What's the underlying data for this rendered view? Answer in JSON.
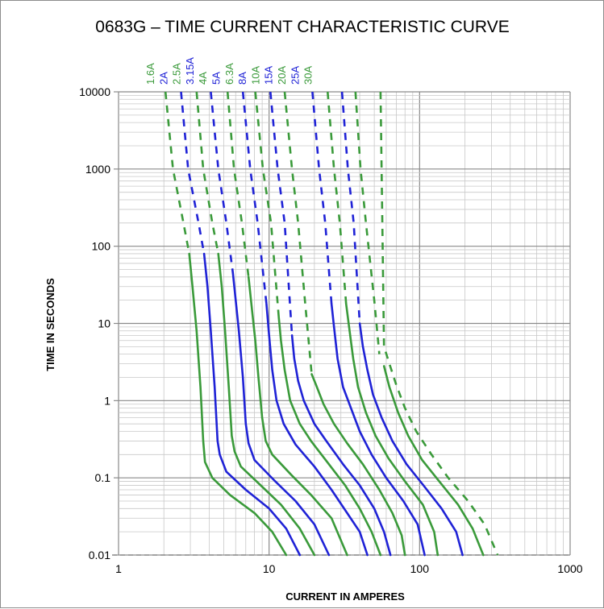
{
  "chart_data": {
    "type": "line",
    "title": "0683G – TIME CURRENT CHARACTERISTIC CURVE",
    "xlabel": "CURRENT IN AMPERES",
    "ylabel": "TIME IN SECONDS",
    "x_scale": "log",
    "y_scale": "log",
    "xlim": [
      1,
      1000
    ],
    "ylim": [
      0.01,
      10000
    ],
    "x_ticks": [
      "1",
      "10",
      "100",
      "1000"
    ],
    "y_ticks": [
      "0.01",
      "0.1",
      "1",
      "10",
      "100",
      "1000",
      "10000"
    ],
    "grid": true,
    "legend_position": "top",
    "colors": {
      "green": "#3a9a3a",
      "blue": "#1f22d6"
    },
    "series": [
      {
        "name": "1.6A",
        "color": "#3a9a3a",
        "dashed_until_time": 80,
        "points": [
          [
            2.05,
            10000
          ],
          [
            2.3,
            1000
          ],
          [
            2.7,
            200
          ],
          [
            2.95,
            80
          ],
          [
            3.1,
            30
          ],
          [
            3.3,
            8
          ],
          [
            3.5,
            1.5
          ],
          [
            3.65,
            0.3
          ],
          [
            3.75,
            0.16
          ],
          [
            4.2,
            0.1
          ],
          [
            5.5,
            0.06
          ],
          [
            8,
            0.035
          ],
          [
            10.5,
            0.02
          ],
          [
            13,
            0.01
          ]
        ]
      },
      {
        "name": "2A",
        "color": "#1f22d6",
        "dashed_until_time": 80,
        "points": [
          [
            2.6,
            10000
          ],
          [
            2.9,
            1000
          ],
          [
            3.4,
            200
          ],
          [
            3.7,
            80
          ],
          [
            3.9,
            30
          ],
          [
            4.1,
            8
          ],
          [
            4.35,
            1.5
          ],
          [
            4.55,
            0.3
          ],
          [
            4.7,
            0.2
          ],
          [
            5.2,
            0.12
          ],
          [
            7,
            0.07
          ],
          [
            10,
            0.04
          ],
          [
            13,
            0.022
          ],
          [
            16,
            0.01
          ]
        ]
      },
      {
        "name": "2.5A",
        "color": "#3a9a3a",
        "dashed_until_time": 80,
        "points": [
          [
            3.3,
            10000
          ],
          [
            3.65,
            1000
          ],
          [
            4.2,
            200
          ],
          [
            4.6,
            80
          ],
          [
            4.85,
            30
          ],
          [
            5.1,
            8
          ],
          [
            5.4,
            1.5
          ],
          [
            5.65,
            0.35
          ],
          [
            5.9,
            0.22
          ],
          [
            6.5,
            0.14
          ],
          [
            8.8,
            0.08
          ],
          [
            12,
            0.045
          ],
          [
            16,
            0.022
          ],
          [
            20,
            0.01
          ]
        ]
      },
      {
        "name": "3.15A",
        "color": "#1f22d6",
        "dashed_until_time": 45,
        "points": [
          [
            4.1,
            10000
          ],
          [
            4.6,
            1000
          ],
          [
            5.2,
            200
          ],
          [
            5.75,
            45
          ],
          [
            6,
            20
          ],
          [
            6.3,
            8
          ],
          [
            6.7,
            2
          ],
          [
            7,
            0.5
          ],
          [
            7.3,
            0.28
          ],
          [
            8,
            0.17
          ],
          [
            11,
            0.09
          ],
          [
            15,
            0.05
          ],
          [
            20,
            0.025
          ],
          [
            25,
            0.01
          ]
        ]
      },
      {
        "name": "4A",
        "color": "#3a9a3a",
        "dashed_until_time": 40,
        "points": [
          [
            5.3,
            10000
          ],
          [
            5.85,
            1000
          ],
          [
            6.6,
            200
          ],
          [
            7.3,
            40
          ],
          [
            7.7,
            15
          ],
          [
            8.1,
            6
          ],
          [
            8.5,
            2
          ],
          [
            9,
            0.6
          ],
          [
            9.5,
            0.3
          ],
          [
            10.5,
            0.2
          ],
          [
            14,
            0.11
          ],
          [
            19,
            0.06
          ],
          [
            26,
            0.03
          ],
          [
            33,
            0.01
          ]
        ]
      },
      {
        "name": "5A",
        "color": "#1f22d6",
        "dashed_until_time": 18,
        "points": [
          [
            6.7,
            10000
          ],
          [
            7.5,
            1000
          ],
          [
            8.4,
            200
          ],
          [
            9.6,
            18
          ],
          [
            10,
            7
          ],
          [
            10.5,
            2.5
          ],
          [
            11.2,
            1
          ],
          [
            12.5,
            0.5
          ],
          [
            15,
            0.27
          ],
          [
            20,
            0.14
          ],
          [
            26,
            0.07
          ],
          [
            33,
            0.035
          ],
          [
            40,
            0.02
          ],
          [
            45,
            0.01
          ]
        ]
      },
      {
        "name": "6.3A",
        "color": "#3a9a3a",
        "dashed_until_time": 12,
        "points": [
          [
            8.1,
            10000
          ],
          [
            9.1,
            1000
          ],
          [
            10.3,
            200
          ],
          [
            11.6,
            12
          ],
          [
            12,
            6
          ],
          [
            12.7,
            2.5
          ],
          [
            13.8,
            1
          ],
          [
            16,
            0.5
          ],
          [
            19,
            0.3
          ],
          [
            25,
            0.15
          ],
          [
            32,
            0.08
          ],
          [
            40,
            0.04
          ],
          [
            48,
            0.02
          ],
          [
            55,
            0.01
          ]
        ]
      },
      {
        "name": "8A",
        "color": "#1f22d6",
        "dashed_until_time": 7,
        "points": [
          [
            10.2,
            10000
          ],
          [
            11.4,
            1000
          ],
          [
            12.7,
            200
          ],
          [
            14.2,
            7
          ],
          [
            14.7,
            3.5
          ],
          [
            15.6,
            1.8
          ],
          [
            17,
            1
          ],
          [
            20,
            0.5
          ],
          [
            24,
            0.3
          ],
          [
            31,
            0.15
          ],
          [
            40,
            0.08
          ],
          [
            50,
            0.04
          ],
          [
            58,
            0.02
          ],
          [
            64,
            0.01
          ]
        ]
      },
      {
        "name": "10A",
        "color": "#3a9a3a",
        "dashed_until_time": 2.2,
        "points": [
          [
            12.7,
            10000
          ],
          [
            14.2,
            1000
          ],
          [
            15.6,
            200
          ],
          [
            17.3,
            20
          ],
          [
            19.2,
            2.2
          ],
          [
            20.5,
            1.6
          ],
          [
            23,
            0.9
          ],
          [
            27,
            0.5
          ],
          [
            33,
            0.28
          ],
          [
            42,
            0.15
          ],
          [
            54,
            0.07
          ],
          [
            66,
            0.035
          ],
          [
            76,
            0.018
          ],
          [
            80,
            0.01
          ]
        ]
      },
      {
        "name": "15A",
        "color": "#1f22d6",
        "dashed_until_time": 18,
        "points": [
          [
            19.4,
            10000
          ],
          [
            21.5,
            1000
          ],
          [
            23.6,
            200
          ],
          [
            26,
            18
          ],
          [
            27,
            9
          ],
          [
            28.5,
            3.5
          ],
          [
            31,
            1.5
          ],
          [
            35,
            0.8
          ],
          [
            40,
            0.4
          ],
          [
            48,
            0.2
          ],
          [
            60,
            0.1
          ],
          [
            78,
            0.05
          ],
          [
            97,
            0.025
          ],
          [
            108,
            0.01
          ]
        ]
      },
      {
        "name": "20A",
        "color": "#3a9a3a",
        "dashed_until_time": 18,
        "points": [
          [
            24.5,
            10000
          ],
          [
            27,
            1000
          ],
          [
            29.5,
            200
          ],
          [
            32.5,
            18
          ],
          [
            34,
            9
          ],
          [
            36.2,
            3.5
          ],
          [
            39,
            1.5
          ],
          [
            44,
            0.7
          ],
          [
            51,
            0.35
          ],
          [
            62,
            0.18
          ],
          [
            80,
            0.09
          ],
          [
            105,
            0.045
          ],
          [
            125,
            0.02
          ],
          [
            132,
            0.01
          ]
        ]
      },
      {
        "name": "25A",
        "color": "#1f22d6",
        "dashed_until_time": 10,
        "points": [
          [
            30.5,
            10000
          ],
          [
            33.4,
            1000
          ],
          [
            36.5,
            200
          ],
          [
            40,
            10
          ],
          [
            42,
            5
          ],
          [
            45,
            2.5
          ],
          [
            49,
            1.2
          ],
          [
            56,
            0.6
          ],
          [
            66,
            0.3
          ],
          [
            82,
            0.15
          ],
          [
            106,
            0.08
          ],
          [
            140,
            0.04
          ],
          [
            175,
            0.02
          ],
          [
            193,
            0.01
          ]
        ]
      },
      {
        "name": "30A",
        "color": "#3a9a3a",
        "dashed_until_time": 3.5,
        "points": [
          [
            37.5,
            10000
          ],
          [
            40.5,
            1000
          ],
          [
            44,
            200
          ],
          [
            50,
            20
          ],
          [
            54,
            4
          ],
          [
            58,
            2.8
          ],
          [
            63,
            1.5
          ],
          [
            72,
            0.7
          ],
          [
            84,
            0.35
          ],
          [
            104,
            0.17
          ],
          [
            135,
            0.09
          ],
          [
            180,
            0.045
          ],
          [
            225,
            0.022
          ],
          [
            265,
            0.01
          ]
        ]
      },
      {
        "name": "",
        "color": "#3a9a3a",
        "dashed_until_time": 0,
        "points": [
          [
            55,
            10000
          ],
          [
            58,
            5
          ],
          [
            63,
            3
          ],
          [
            70,
            1.6
          ],
          [
            80,
            0.8
          ],
          [
            95,
            0.4
          ],
          [
            120,
            0.2
          ],
          [
            155,
            0.1
          ],
          [
            210,
            0.05
          ],
          [
            270,
            0.025
          ],
          [
            330,
            0.01
          ]
        ]
      }
    ]
  }
}
